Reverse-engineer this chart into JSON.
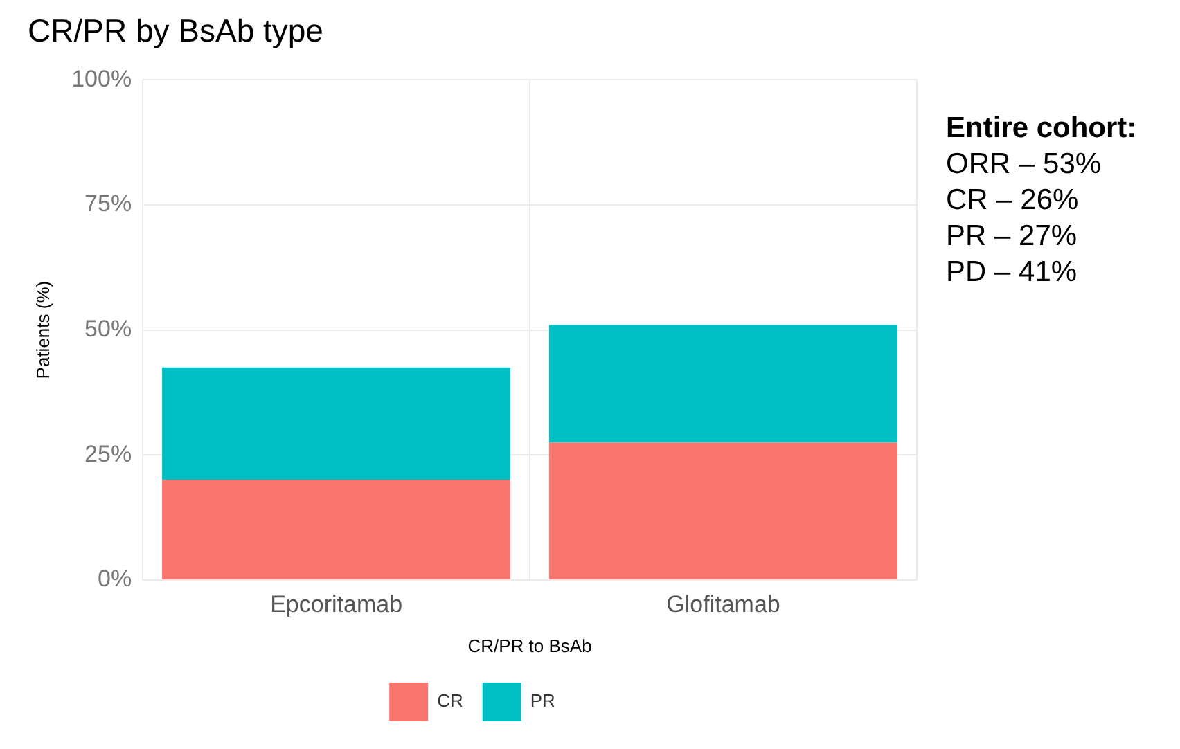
{
  "chart_data": {
    "type": "bar",
    "title": "CR/PR by BsAb type",
    "xlabel": "CR/PR to BsAb",
    "ylabel": "Patients (%)",
    "categories": [
      "Epcoritamab",
      "Glofitamab"
    ],
    "series": [
      {
        "name": "CR",
        "color": "#f8766d",
        "values": [
          20,
          27.5
        ]
      },
      {
        "name": "PR",
        "color": "#00bfc4",
        "values": [
          22.5,
          23.5
        ]
      }
    ],
    "stacked": true,
    "ylim": [
      0,
      100
    ],
    "yticks": [
      {
        "value": 0,
        "label": "0%"
      },
      {
        "value": 25,
        "label": "25%"
      },
      {
        "value": 50,
        "label": "50%"
      },
      {
        "value": 75,
        "label": "75%"
      },
      {
        "value": 100,
        "label": "100%"
      }
    ],
    "grid": true,
    "legend": "bottom",
    "annotations": [
      "Entire cohort:",
      "ORR – 53%",
      "CR – 26%",
      "PR – 27%",
      "PD – 41%"
    ]
  }
}
